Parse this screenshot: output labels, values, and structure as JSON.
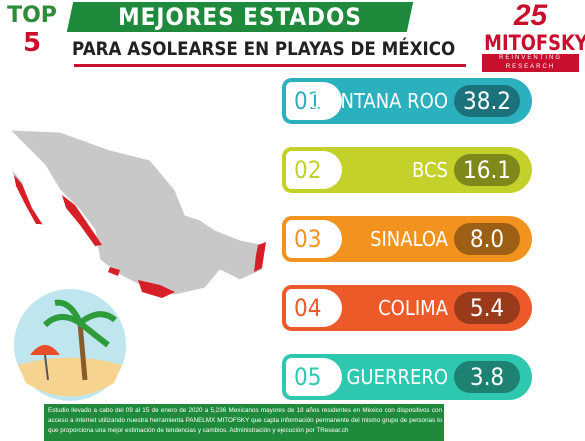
{
  "header": {
    "top": "TOP",
    "top_number": "5",
    "title": "MEJORES ESTADOS",
    "subtitle": "PARA ASOLEARSE EN PLAYAS DE MÉXICO"
  },
  "logo": {
    "anniversary": "25",
    "name": "MITOFSKY",
    "tagline": "REINVENTING RESEARCH"
  },
  "ranking": [
    {
      "rank": "01",
      "state": "QUINTANA ROO",
      "value": "38.2",
      "color": "#2bb0bd"
    },
    {
      "rank": "02",
      "state": "BCS",
      "value": "16.1",
      "color": "#c3d12a"
    },
    {
      "rank": "03",
      "state": "SINALOA",
      "value": "8.0",
      "color": "#f29320"
    },
    {
      "rank": "04",
      "state": "COLIMA",
      "value": "5.4",
      "color": "#ec5a2a"
    },
    {
      "rank": "05",
      "state": "GUERRERO",
      "value": "3.8",
      "color": "#2ec8b0"
    }
  ],
  "footer": "Estudio llevado a cabo del 09 al 15 de enero de 2020 a 5,236 Mexicanos mayores de 18 años residentes en México con dispositivos con acceso a internet utilizando nuestra herramienta PANELMX MITOFSKY que capta información permanente del mismo grupo de personas lo que proporciona una mejor estimación de tendencias y cambios. Administración y ejecución por TResear.ch"
}
